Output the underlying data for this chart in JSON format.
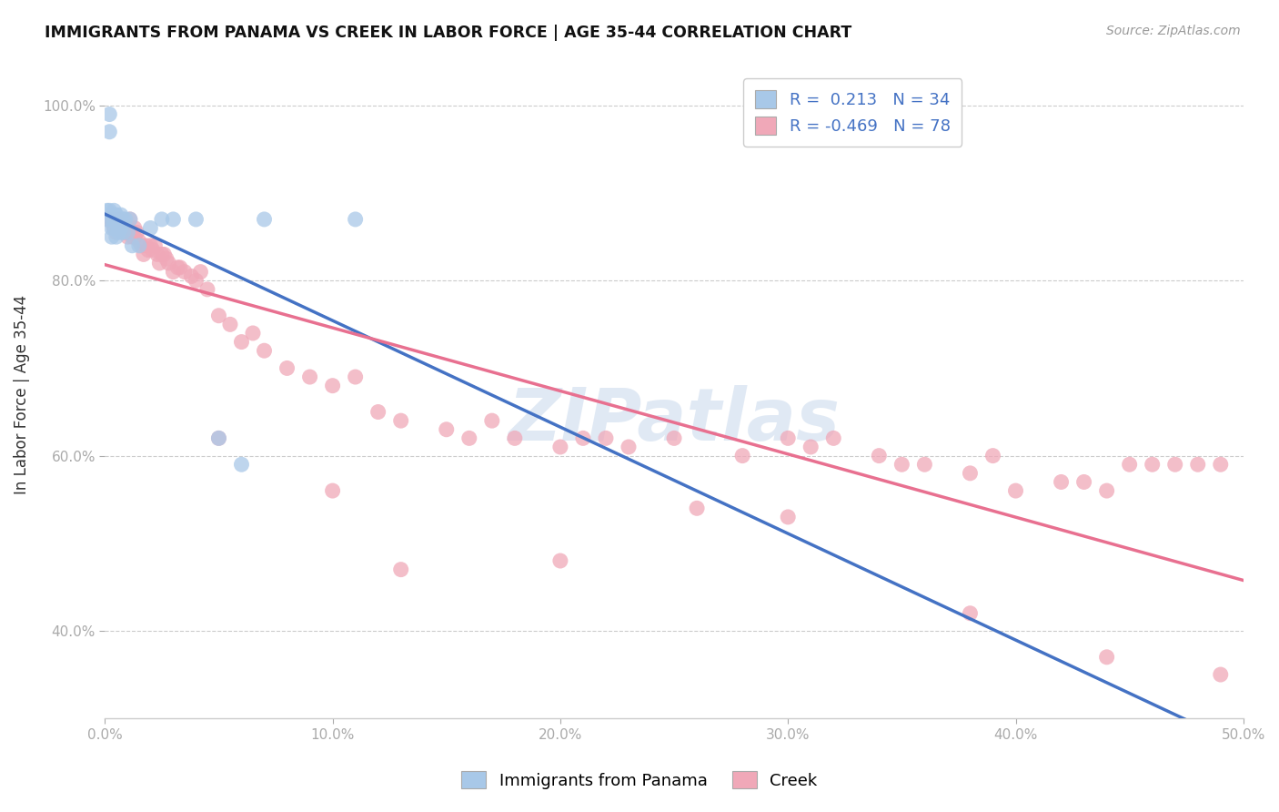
{
  "title": "IMMIGRANTS FROM PANAMA VS CREEK IN LABOR FORCE | AGE 35-44 CORRELATION CHART",
  "source": "Source: ZipAtlas.com",
  "ylabel": "In Labor Force | Age 35-44",
  "xlim": [
    0.0,
    0.5
  ],
  "ylim": [
    0.3,
    1.04
  ],
  "xticks": [
    0.0,
    0.1,
    0.2,
    0.3,
    0.4,
    0.5
  ],
  "xtick_labels": [
    "0.0%",
    "10.0%",
    "20.0%",
    "30.0%",
    "40.0%",
    "50.0%"
  ],
  "yticks": [
    0.4,
    0.6,
    0.8,
    1.0
  ],
  "ytick_labels": [
    "40.0%",
    "60.0%",
    "80.0%",
    "100.0%"
  ],
  "legend_r_panama": "0.213",
  "legend_n_panama": "34",
  "legend_r_creek": "-0.469",
  "legend_n_creek": "78",
  "color_panama": "#a8c8e8",
  "color_creek": "#f0a8b8",
  "color_panama_line": "#4472C4",
  "color_creek_line": "#e87090",
  "watermark": "ZIPatlas",
  "panama_x": [
    0.001,
    0.001,
    0.002,
    0.002,
    0.002,
    0.003,
    0.003,
    0.003,
    0.004,
    0.004,
    0.004,
    0.005,
    0.005,
    0.005,
    0.006,
    0.006,
    0.006,
    0.007,
    0.007,
    0.008,
    0.008,
    0.009,
    0.01,
    0.011,
    0.012,
    0.015,
    0.02,
    0.025,
    0.03,
    0.04,
    0.05,
    0.06,
    0.07,
    0.11
  ],
  "panama_y": [
    0.88,
    0.87,
    0.99,
    0.97,
    0.88,
    0.87,
    0.86,
    0.85,
    0.88,
    0.87,
    0.86,
    0.875,
    0.865,
    0.85,
    0.87,
    0.86,
    0.855,
    0.875,
    0.86,
    0.87,
    0.855,
    0.87,
    0.855,
    0.87,
    0.84,
    0.84,
    0.86,
    0.87,
    0.87,
    0.87,
    0.62,
    0.59,
    0.87,
    0.87
  ],
  "creek_x": [
    0.001,
    0.002,
    0.003,
    0.004,
    0.005,
    0.005,
    0.006,
    0.006,
    0.007,
    0.008,
    0.009,
    0.01,
    0.01,
    0.011,
    0.012,
    0.013,
    0.013,
    0.014,
    0.015,
    0.016,
    0.017,
    0.018,
    0.019,
    0.02,
    0.021,
    0.022,
    0.023,
    0.024,
    0.025,
    0.026,
    0.027,
    0.028,
    0.03,
    0.032,
    0.033,
    0.035,
    0.038,
    0.04,
    0.042,
    0.045,
    0.05,
    0.055,
    0.06,
    0.065,
    0.07,
    0.08,
    0.09,
    0.1,
    0.11,
    0.12,
    0.13,
    0.15,
    0.16,
    0.17,
    0.18,
    0.2,
    0.21,
    0.22,
    0.23,
    0.25,
    0.28,
    0.3,
    0.31,
    0.32,
    0.34,
    0.35,
    0.36,
    0.38,
    0.39,
    0.4,
    0.42,
    0.43,
    0.44,
    0.45,
    0.46,
    0.47,
    0.48,
    0.49
  ],
  "creek_y": [
    0.87,
    0.87,
    0.87,
    0.86,
    0.865,
    0.855,
    0.87,
    0.86,
    0.865,
    0.865,
    0.855,
    0.86,
    0.85,
    0.87,
    0.85,
    0.86,
    0.85,
    0.855,
    0.845,
    0.84,
    0.83,
    0.84,
    0.835,
    0.84,
    0.835,
    0.84,
    0.83,
    0.82,
    0.83,
    0.83,
    0.825,
    0.82,
    0.81,
    0.815,
    0.815,
    0.81,
    0.805,
    0.8,
    0.81,
    0.79,
    0.76,
    0.75,
    0.73,
    0.74,
    0.72,
    0.7,
    0.69,
    0.68,
    0.69,
    0.65,
    0.64,
    0.63,
    0.62,
    0.64,
    0.62,
    0.61,
    0.62,
    0.62,
    0.61,
    0.62,
    0.6,
    0.62,
    0.61,
    0.62,
    0.6,
    0.59,
    0.59,
    0.58,
    0.6,
    0.56,
    0.57,
    0.57,
    0.56,
    0.59,
    0.59,
    0.59,
    0.59,
    0.59
  ],
  "creek_outliers_x": [
    0.05,
    0.1,
    0.13,
    0.2,
    0.26,
    0.3,
    0.38,
    0.44,
    0.49
  ],
  "creek_outliers_y": [
    0.62,
    0.56,
    0.47,
    0.48,
    0.54,
    0.53,
    0.42,
    0.37,
    0.35
  ]
}
